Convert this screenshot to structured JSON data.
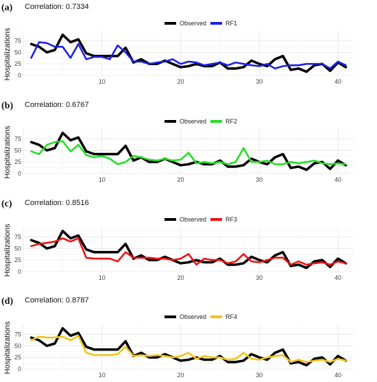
{
  "chart_data": [
    {
      "type": "line",
      "panel_label": "(a)",
      "title": "Correlation: 0.7334",
      "ylabel": "Hospitalizations",
      "xlabel": "",
      "x": [
        1,
        2,
        3,
        4,
        5,
        6,
        7,
        8,
        9,
        10,
        11,
        12,
        13,
        14,
        15,
        16,
        17,
        18,
        19,
        20,
        21,
        22,
        23,
        24,
        25,
        26,
        27,
        28,
        29,
        30,
        31,
        32,
        33,
        34,
        35,
        36,
        37,
        38,
        39,
        40,
        41
      ],
      "xlim": [
        0,
        42
      ],
      "ylim": [
        0,
        92
      ],
      "xticks": [
        10,
        20,
        30,
        40
      ],
      "yticks": [
        0,
        25,
        50,
        75
      ],
      "grid": true,
      "legend_position": "top-right",
      "series": [
        {
          "name": "Observed",
          "color": "#000000",
          "values": [
            68,
            62,
            50,
            55,
            88,
            72,
            78,
            48,
            42,
            42,
            42,
            42,
            60,
            28,
            35,
            25,
            25,
            32,
            25,
            18,
            20,
            25,
            20,
            20,
            28,
            15,
            15,
            18,
            32,
            25,
            20,
            35,
            42,
            12,
            15,
            8,
            22,
            25,
            10,
            28,
            18
          ]
        },
        {
          "name": "RF1",
          "color": "#1f1fe6",
          "values": [
            38,
            72,
            70,
            62,
            62,
            38,
            68,
            35,
            40,
            40,
            35,
            65,
            50,
            30,
            30,
            25,
            28,
            30,
            35,
            25,
            30,
            28,
            22,
            25,
            28,
            22,
            28,
            25,
            22,
            20,
            25,
            15,
            20,
            22,
            22,
            25,
            25,
            25,
            15,
            30,
            22
          ]
        }
      ]
    },
    {
      "type": "line",
      "panel_label": "(b)",
      "title": "Correlation: 0.6767",
      "ylabel": "Hospitalizations",
      "xlabel": "",
      "x": [
        1,
        2,
        3,
        4,
        5,
        6,
        7,
        8,
        9,
        10,
        11,
        12,
        13,
        14,
        15,
        16,
        17,
        18,
        19,
        20,
        21,
        22,
        23,
        24,
        25,
        26,
        27,
        28,
        29,
        30,
        31,
        32,
        33,
        34,
        35,
        36,
        37,
        38,
        39,
        40,
        41
      ],
      "xlim": [
        0,
        42
      ],
      "ylim": [
        0,
        92
      ],
      "xticks": [
        10,
        20,
        30,
        40
      ],
      "yticks": [
        0,
        25,
        50,
        75
      ],
      "grid": true,
      "legend_position": "top-right",
      "series": [
        {
          "name": "Observed",
          "color": "#000000",
          "values": [
            68,
            62,
            50,
            55,
            88,
            72,
            78,
            48,
            42,
            42,
            42,
            42,
            60,
            28,
            35,
            25,
            25,
            32,
            25,
            18,
            20,
            25,
            20,
            20,
            28,
            15,
            15,
            18,
            32,
            25,
            20,
            35,
            42,
            12,
            15,
            8,
            22,
            25,
            10,
            28,
            18
          ]
        },
        {
          "name": "RF2",
          "color": "#22e022",
          "values": [
            48,
            42,
            62,
            68,
            70,
            48,
            62,
            40,
            35,
            38,
            32,
            20,
            25,
            38,
            35,
            30,
            28,
            32,
            28,
            30,
            45,
            22,
            25,
            22,
            25,
            20,
            25,
            55,
            25,
            25,
            28,
            20,
            20,
            25,
            22,
            25,
            28,
            22,
            20,
            22,
            20
          ]
        }
      ]
    },
    {
      "type": "line",
      "panel_label": "(c)",
      "title": "Correlation: 0.8516",
      "ylabel": "Hospitalizations",
      "xlabel": "",
      "x": [
        1,
        2,
        3,
        4,
        5,
        6,
        7,
        8,
        9,
        10,
        11,
        12,
        13,
        14,
        15,
        16,
        17,
        18,
        19,
        20,
        21,
        22,
        23,
        24,
        25,
        26,
        27,
        28,
        29,
        30,
        31,
        32,
        33,
        34,
        35,
        36,
        37,
        38,
        39,
        40,
        41
      ],
      "xlim": [
        0,
        42
      ],
      "ylim": [
        0,
        92
      ],
      "xticks": [
        10,
        20,
        30,
        40
      ],
      "yticks": [
        0,
        25,
        50,
        75
      ],
      "grid": true,
      "legend_position": "top-right",
      "series": [
        {
          "name": "Observed",
          "color": "#000000",
          "values": [
            68,
            62,
            50,
            55,
            88,
            72,
            78,
            48,
            42,
            42,
            42,
            42,
            60,
            28,
            35,
            25,
            25,
            32,
            25,
            18,
            20,
            25,
            20,
            20,
            28,
            15,
            15,
            18,
            32,
            25,
            20,
            35,
            42,
            12,
            15,
            8,
            22,
            25,
            10,
            28,
            18
          ]
        },
        {
          "name": "RF3",
          "color": "#ee1111",
          "values": [
            55,
            60,
            62,
            65,
            72,
            65,
            72,
            30,
            28,
            28,
            28,
            22,
            42,
            30,
            30,
            30,
            28,
            28,
            25,
            28,
            38,
            15,
            28,
            25,
            25,
            18,
            22,
            38,
            22,
            20,
            25,
            30,
            30,
            15,
            22,
            15,
            18,
            20,
            15,
            22,
            18
          ]
        }
      ]
    },
    {
      "type": "line",
      "panel_label": "(d)",
      "title": "Correlation: 0.8787",
      "ylabel": "Hospitalizations",
      "xlabel": "",
      "x": [
        1,
        2,
        3,
        4,
        5,
        6,
        7,
        8,
        9,
        10,
        11,
        12,
        13,
        14,
        15,
        16,
        17,
        18,
        19,
        20,
        21,
        22,
        23,
        24,
        25,
        26,
        27,
        28,
        29,
        30,
        31,
        32,
        33,
        34,
        35,
        36,
        37,
        38,
        39,
        40,
        41
      ],
      "xlim": [
        0,
        42
      ],
      "ylim": [
        0,
        92
      ],
      "xticks": [
        10,
        20,
        30,
        40
      ],
      "yticks": [
        0,
        25,
        50,
        75
      ],
      "grid": true,
      "legend_position": "top-right",
      "series": [
        {
          "name": "Observed",
          "color": "#000000",
          "values": [
            68,
            62,
            50,
            55,
            88,
            72,
            78,
            48,
            42,
            42,
            42,
            42,
            60,
            28,
            35,
            25,
            25,
            32,
            25,
            18,
            20,
            25,
            20,
            20,
            28,
            15,
            15,
            18,
            32,
            25,
            20,
            35,
            42,
            12,
            15,
            8,
            22,
            25,
            10,
            28,
            18
          ]
        },
        {
          "name": "RF4",
          "color": "#f2c417",
          "values": [
            62,
            70,
            68,
            68,
            70,
            62,
            72,
            35,
            30,
            30,
            30,
            32,
            48,
            28,
            30,
            28,
            30,
            28,
            25,
            28,
            35,
            22,
            28,
            25,
            25,
            20,
            22,
            35,
            22,
            20,
            25,
            28,
            30,
            15,
            20,
            15,
            18,
            20,
            15,
            22,
            18
          ]
        }
      ]
    }
  ]
}
